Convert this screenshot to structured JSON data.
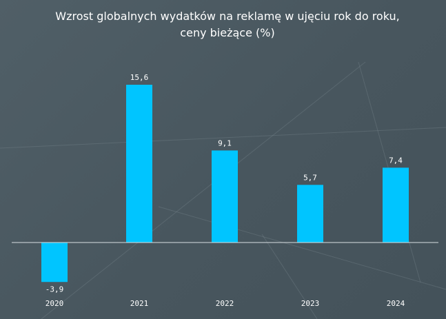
{
  "chart_data": {
    "type": "bar",
    "title": "Wzrost globalnych wydatków na reklamę w ujęciu rok do roku, ceny bieżące (%)",
    "categories": [
      "2020",
      "2021",
      "2022",
      "2023",
      "2024"
    ],
    "values": [
      -3.9,
      15.6,
      9.1,
      5.7,
      7.4
    ],
    "data_labels": [
      "-3,9",
      "15,6",
      "9,1",
      "5,7",
      "7,4"
    ],
    "ylim": [
      -3.9,
      15.6
    ],
    "grid": false,
    "legend": "none",
    "colors": {
      "bar": "#00c5ff",
      "zero_line": "#d9dfe2",
      "text": "#ffffff",
      "background": "#4a5961"
    }
  }
}
